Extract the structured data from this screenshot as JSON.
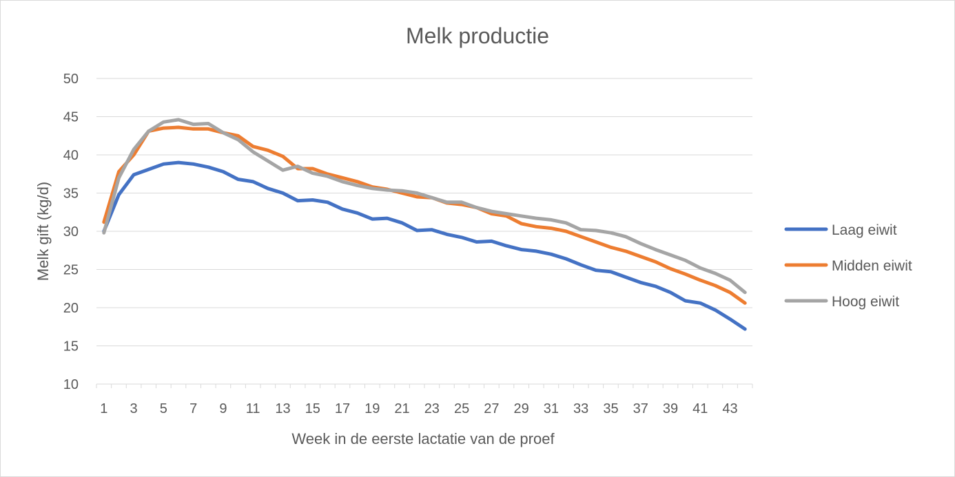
{
  "chart_data": {
    "type": "line",
    "title": "Melk productie",
    "xlabel": "Week in de eerste lactatie van de proef",
    "ylabel": "Melk gift (kg/d)",
    "ylim": [
      10,
      50
    ],
    "yticks": [
      10,
      15,
      20,
      25,
      30,
      35,
      40,
      45,
      50
    ],
    "xlim": [
      1,
      44
    ],
    "xticks": [
      1,
      3,
      5,
      7,
      9,
      11,
      13,
      15,
      17,
      19,
      21,
      23,
      25,
      27,
      29,
      31,
      33,
      35,
      37,
      39,
      41,
      43
    ],
    "grid": true,
    "legend_position": "right",
    "x": [
      1,
      2,
      3,
      4,
      5,
      6,
      7,
      8,
      9,
      10,
      11,
      12,
      13,
      14,
      15,
      16,
      17,
      18,
      19,
      20,
      21,
      22,
      23,
      24,
      25,
      26,
      27,
      28,
      29,
      30,
      31,
      32,
      33,
      34,
      35,
      36,
      37,
      38,
      39,
      40,
      41,
      42,
      43,
      44
    ],
    "series": [
      {
        "name": "Laag eiwit",
        "color": "#4472C4",
        "values": [
          30.0,
          34.8,
          37.4,
          38.1,
          38.8,
          39.0,
          38.8,
          38.4,
          37.8,
          36.8,
          36.5,
          35.6,
          35.0,
          34.0,
          34.1,
          33.8,
          32.9,
          32.4,
          31.6,
          31.7,
          31.1,
          30.1,
          30.2,
          29.6,
          29.2,
          28.6,
          28.7,
          28.1,
          27.6,
          27.4,
          27.0,
          26.4,
          25.6,
          24.9,
          24.7,
          24.0,
          23.3,
          22.8,
          22.0,
          20.9,
          20.6,
          19.7,
          18.5,
          17.2
        ]
      },
      {
        "name": "Midden eiwit",
        "color": "#ED7D31",
        "values": [
          31.2,
          37.8,
          40.0,
          43.1,
          43.5,
          43.6,
          43.4,
          43.4,
          42.9,
          42.5,
          41.1,
          40.6,
          39.8,
          38.2,
          38.2,
          37.5,
          37.0,
          36.5,
          35.8,
          35.5,
          35.0,
          34.5,
          34.4,
          33.7,
          33.5,
          33.1,
          32.3,
          32.0,
          31.0,
          30.6,
          30.4,
          30.0,
          29.3,
          28.6,
          27.9,
          27.4,
          26.7,
          26.0,
          25.1,
          24.4,
          23.6,
          22.9,
          22.0,
          20.6
        ]
      },
      {
        "name": "Hoog eiwit",
        "color": "#A5A5A5",
        "values": [
          29.8,
          37.0,
          40.7,
          43.1,
          44.3,
          44.6,
          44.0,
          44.1,
          42.9,
          42.0,
          40.4,
          39.2,
          38.0,
          38.5,
          37.6,
          37.2,
          36.5,
          36.0,
          35.6,
          35.4,
          35.3,
          35.0,
          34.4,
          33.8,
          33.8,
          33.1,
          32.6,
          32.3,
          32.0,
          31.7,
          31.5,
          31.1,
          30.2,
          30.1,
          29.8,
          29.3,
          28.4,
          27.6,
          26.9,
          26.2,
          25.2,
          24.5,
          23.6,
          22.0
        ]
      }
    ]
  }
}
